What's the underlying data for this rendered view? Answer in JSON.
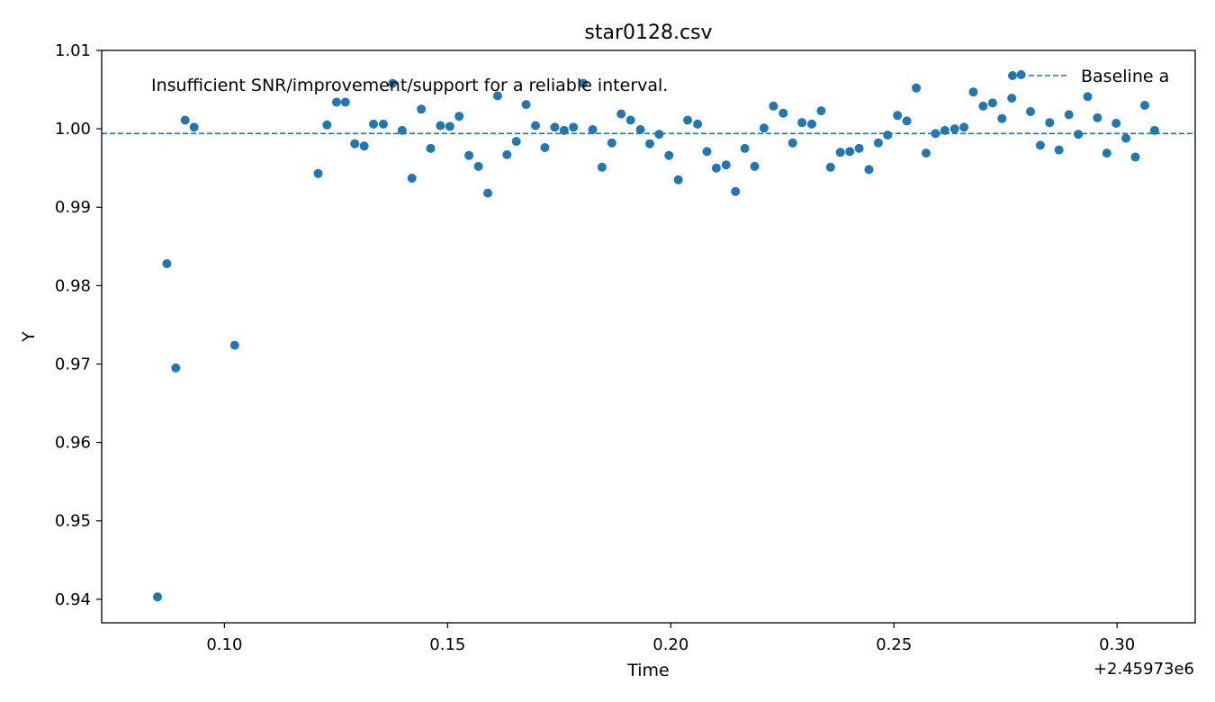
{
  "chart_data": {
    "type": "scatter",
    "title": "star0128.csv",
    "xlabel": "Time",
    "ylabel": "Y",
    "x_offset_label": "+2.45973e6",
    "annotation": "Insufficient SNR/improvement/support for a reliable interval.",
    "xlim": [
      0.0725,
      0.3175
    ],
    "ylim": [
      0.937,
      1.01
    ],
    "x_ticks": [
      0.1,
      0.15,
      0.2,
      0.25,
      0.3
    ],
    "x_tick_labels": [
      "0.10",
      "0.15",
      "0.20",
      "0.25",
      "0.30"
    ],
    "y_ticks": [
      0.94,
      0.95,
      0.96,
      0.97,
      0.98,
      0.99,
      1.0,
      1.01
    ],
    "y_tick_labels": [
      "0.94",
      "0.95",
      "0.96",
      "0.97",
      "0.98",
      "0.99",
      "1.00",
      "1.01"
    ],
    "grid": false,
    "legend": {
      "placement": "top-right",
      "entries": [
        {
          "label": "",
          "kind": "marker"
        },
        {
          "label": "Baseline a",
          "kind": "dashed-line"
        }
      ]
    },
    "baseline": 0.9994,
    "colors": {
      "points": "#1f77b4",
      "baseline": "#1f77b4"
    },
    "series": [
      {
        "x": [
          0.085,
          0.0871,
          0.0891,
          0.0912,
          0.0932,
          0.1023,
          0.121,
          0.123,
          0.1251,
          0.1271,
          0.1292,
          0.1313,
          0.1334,
          0.1356,
          0.1377,
          0.1398,
          0.142,
          0.1441,
          0.1462,
          0.1484,
          0.1505,
          0.1526,
          0.1548,
          0.1569,
          0.159,
          0.1612,
          0.1633,
          0.1654,
          0.1676,
          0.1697,
          0.1718,
          0.174,
          0.1761,
          0.1782,
          0.1804,
          0.1825,
          0.1846,
          0.1868,
          0.1889,
          0.191,
          0.1932,
          0.1953,
          0.1974,
          0.1996,
          0.2017,
          0.2038,
          0.206,
          0.2081,
          0.2102,
          0.2124,
          0.2145,
          0.2166,
          0.2188,
          0.2209,
          0.223,
          0.2252,
          0.2273,
          0.2294,
          0.2316,
          0.2337,
          0.2358,
          0.238,
          0.2401,
          0.2422,
          0.2444,
          0.2465,
          0.2486,
          0.2508,
          0.2529,
          0.255,
          0.2572,
          0.2593,
          0.2614,
          0.2636,
          0.2657,
          0.2678,
          0.27,
          0.2721,
          0.2742,
          0.2764,
          0.2785,
          0.2806,
          0.2828,
          0.2849,
          0.287,
          0.2892,
          0.2913,
          0.2934,
          0.2956,
          0.2977,
          0.2998,
          0.302,
          0.3041,
          0.3062,
          0.3084
        ],
        "y": [
          0.9403,
          0.9828,
          0.9695,
          1.0011,
          1.0002,
          0.9724,
          0.9943,
          1.0005,
          1.0034,
          1.0034,
          0.9981,
          0.9978,
          1.0006,
          1.0006,
          1.0058,
          0.9998,
          0.9937,
          1.0025,
          0.9975,
          1.0004,
          1.0003,
          1.0016,
          0.9966,
          0.9952,
          0.9918,
          1.0042,
          0.9967,
          0.9984,
          1.0031,
          1.0004,
          0.9976,
          1.0002,
          0.9998,
          1.0002,
          1.0058,
          0.9999,
          0.9951,
          0.9982,
          1.0019,
          1.0011,
          0.9999,
          0.9981,
          0.9993,
          0.9966,
          0.9935,
          1.0011,
          1.0006,
          0.9971,
          0.995,
          0.9954,
          0.992,
          0.9975,
          0.9952,
          1.0001,
          1.0029,
          1.002,
          0.9982,
          1.0008,
          1.0006,
          1.0023,
          0.9951,
          0.997,
          0.9971,
          0.9975,
          0.9948,
          0.9982,
          0.9992,
          1.0017,
          1.001,
          1.0052,
          0.9969,
          0.9994,
          0.9998,
          1.0,
          1.0002,
          1.0047,
          1.0029,
          1.0033,
          1.0013,
          1.0039,
          1.0069,
          1.0022,
          0.9979,
          1.0008,
          0.9973,
          1.0018,
          0.9993,
          1.0041,
          1.0014,
          0.9969,
          1.0007,
          0.9988,
          0.9964,
          1.003,
          0.9998
        ]
      }
    ]
  }
}
